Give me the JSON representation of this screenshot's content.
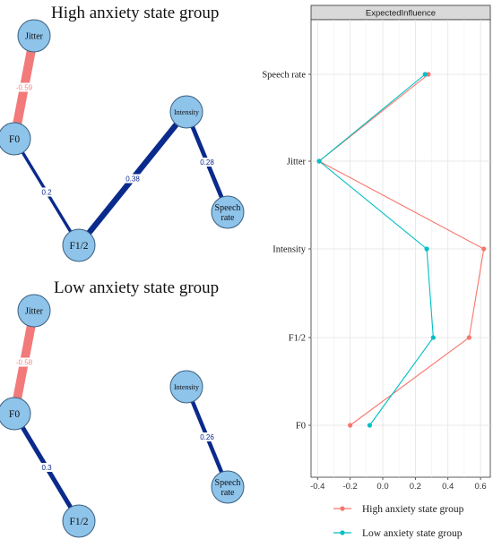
{
  "chart_data": [
    {
      "type": "network",
      "title": "High anxiety state group",
      "nodes": [
        {
          "id": "jitter",
          "label_lines": [
            "Jitter"
          ]
        },
        {
          "id": "f0",
          "label_lines": [
            "F0"
          ]
        },
        {
          "id": "intensity",
          "label_lines": [
            "Intensity"
          ]
        },
        {
          "id": "speech",
          "label_lines": [
            "Speech",
            "rate"
          ]
        },
        {
          "id": "f12",
          "label_lines": [
            "F1/2"
          ]
        }
      ],
      "edges": [
        {
          "from": "jitter",
          "to": "f0",
          "weight": -0.59,
          "label": "-0.59",
          "sign": "negative"
        },
        {
          "from": "f0",
          "to": "f12",
          "weight": 0.2,
          "label": "0.2",
          "sign": "positive"
        },
        {
          "from": "f12",
          "to": "intensity",
          "weight": 0.38,
          "label": "0.38",
          "sign": "positive"
        },
        {
          "from": "intensity",
          "to": "speech",
          "weight": 0.28,
          "label": "0.28",
          "sign": "positive"
        }
      ]
    },
    {
      "type": "network",
      "title": "Low anxiety state group",
      "nodes": [
        {
          "id": "jitter",
          "label_lines": [
            "Jitter"
          ]
        },
        {
          "id": "f0",
          "label_lines": [
            "F0"
          ]
        },
        {
          "id": "intensity",
          "label_lines": [
            "Intensity"
          ]
        },
        {
          "id": "speech",
          "label_lines": [
            "Speech",
            "rate"
          ]
        },
        {
          "id": "f12",
          "label_lines": [
            "F1/2"
          ]
        }
      ],
      "edges": [
        {
          "from": "jitter",
          "to": "f0",
          "weight": -0.58,
          "label": "-0.58",
          "sign": "negative"
        },
        {
          "from": "f0",
          "to": "f12",
          "weight": 0.3,
          "label": "0.3",
          "sign": "positive"
        },
        {
          "from": "intensity",
          "to": "speech",
          "weight": 0.26,
          "label": "0.26",
          "sign": "positive"
        }
      ]
    },
    {
      "type": "line",
      "facet_label": "ExpectedInfluence",
      "categories": [
        "Speech rate",
        "Jitter",
        "Intensity",
        "F1/2",
        "F0"
      ],
      "series": [
        {
          "name": "High anxiety state group",
          "color": "#f8766d",
          "values": [
            0.28,
            -0.39,
            0.62,
            0.53,
            -0.2
          ]
        },
        {
          "name": "Low anxiety state group",
          "color": "#00bfc4",
          "values": [
            0.26,
            -0.39,
            0.27,
            0.31,
            -0.08
          ]
        }
      ],
      "xticks": [
        "-0.4",
        "-0.2",
        "0.0",
        "0.2",
        "0.4",
        "0.6"
      ],
      "xtick_values": [
        -0.4,
        -0.2,
        0,
        0.2,
        0.4,
        0.6
      ],
      "xlim": [
        -0.44,
        0.66
      ],
      "grid": true,
      "legend_position": "bottom"
    }
  ],
  "colors": {
    "node_fill": "#8ec3ea",
    "node_stroke": "#3a5f80",
    "positive_edge": "#0a2a8c",
    "negative_edge": "#f27a7a",
    "strip_fill": "#d9d9d9"
  }
}
